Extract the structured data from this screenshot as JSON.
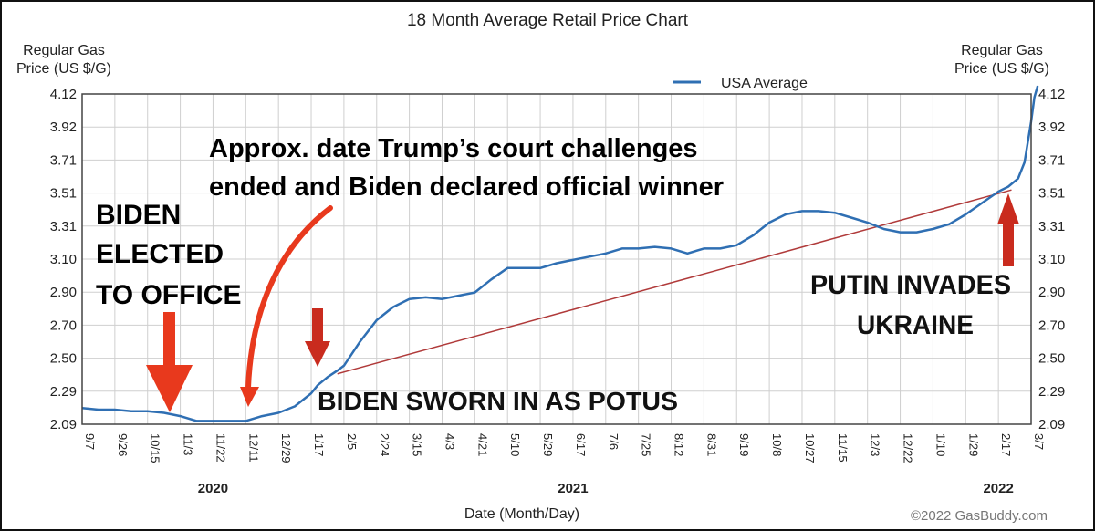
{
  "chart_data": {
    "type": "line",
    "title": "18 Month Average Retail Price Chart",
    "ylabel": "Regular Gas Price (US $/G)",
    "xlabel": "Date (Month/Day)",
    "source": "©2022 GasBuddy.com",
    "ylim": [
      2.09,
      4.12
    ],
    "yticks": [
      "4.12",
      "3.92",
      "3.71",
      "3.51",
      "3.31",
      "3.10",
      "2.90",
      "2.70",
      "2.50",
      "2.29",
      "2.09"
    ],
    "xticks": [
      "9/7",
      "9/26",
      "10/15",
      "11/3",
      "11/22",
      "12/11",
      "12/29",
      "1/17",
      "2/5",
      "2/24",
      "3/15",
      "4/3",
      "4/21",
      "5/10",
      "5/29",
      "6/17",
      "7/6",
      "7/25",
      "8/12",
      "8/31",
      "9/19",
      "10/8",
      "10/27",
      "11/15",
      "12/3",
      "12/22",
      "1/10",
      "1/29",
      "2/17",
      "3/7"
    ],
    "years": [
      {
        "label": "2020",
        "at_tick": 4
      },
      {
        "label": "2021",
        "at_tick": 15
      },
      {
        "label": "2022",
        "at_tick": 28
      }
    ],
    "legend": {
      "placement": "top-center",
      "entry": "USA Average"
    },
    "grid": true,
    "series": [
      {
        "name": "USA Average",
        "color": "#2f6fb3",
        "x_tick_pos": [
          0,
          0.5,
          1,
          1.5,
          2,
          2.5,
          3,
          3.5,
          4,
          4.5,
          5,
          5.5,
          6,
          6.5,
          7,
          7.2,
          7.5,
          7.8,
          8,
          8.5,
          9,
          9.5,
          10,
          10.5,
          11,
          11.5,
          12,
          12.5,
          13,
          13.5,
          14,
          14.5,
          15,
          15.5,
          16,
          16.5,
          17,
          17.5,
          18,
          18.5,
          19,
          19.5,
          20,
          20.5,
          21,
          21.5,
          22,
          22.5,
          23,
          23.5,
          24,
          24.5,
          25,
          25.5,
          26,
          26.5,
          27,
          27.5,
          28,
          28.3,
          28.6,
          28.8,
          29,
          29.1,
          29.2
        ],
        "values": [
          2.19,
          2.18,
          2.18,
          2.17,
          2.17,
          2.16,
          2.14,
          2.11,
          2.11,
          2.11,
          2.11,
          2.14,
          2.16,
          2.2,
          2.28,
          2.33,
          2.38,
          2.42,
          2.45,
          2.6,
          2.73,
          2.81,
          2.86,
          2.87,
          2.86,
          2.88,
          2.9,
          2.98,
          3.05,
          3.05,
          3.05,
          3.08,
          3.1,
          3.12,
          3.14,
          3.17,
          3.17,
          3.18,
          3.17,
          3.14,
          3.17,
          3.17,
          3.19,
          3.25,
          3.33,
          3.38,
          3.4,
          3.4,
          3.39,
          3.36,
          3.33,
          3.29,
          3.27,
          3.27,
          3.29,
          3.32,
          3.38,
          3.45,
          3.52,
          3.55,
          3.6,
          3.7,
          3.95,
          4.1,
          4.17
        ]
      }
    ],
    "trendline": {
      "color": "#b03a3a",
      "from": {
        "x_tick_pos": 7.8,
        "y": 2.4
      },
      "to": {
        "x_tick_pos": 28.4,
        "y": 3.53
      }
    },
    "annotations": [
      {
        "lines": [
          "BIDEN",
          "ELECTED",
          "TO OFFICE"
        ]
      },
      {
        "lines": [
          "Approx. date Trump’s court challenges",
          "ended and Biden declared official winner"
        ]
      },
      {
        "lines": [
          "BIDEN SWORN IN AS POTUS"
        ]
      },
      {
        "lines": [
          "PUTIN INVADES",
          "UKRAINE"
        ]
      }
    ],
    "arrow_color": "#e8391d"
  }
}
